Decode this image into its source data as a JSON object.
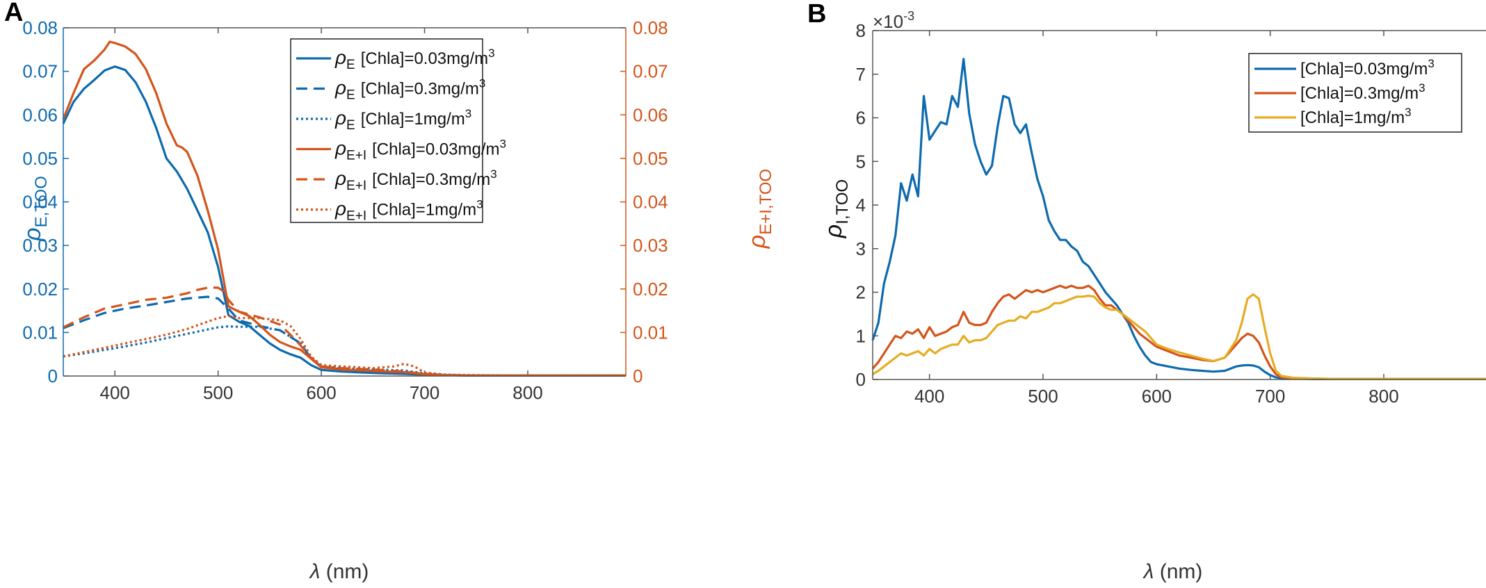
{
  "colors": {
    "blue": "#0d6aae",
    "orange": "#d4541a",
    "yellow": "#e6ac22",
    "axis": "#555555",
    "tickText": "#333333"
  },
  "chart_data": [
    {
      "panel": "A",
      "type": "line",
      "xlabel_symbol": "λ",
      "xlabel_unit": " (nm)",
      "xlim": [
        350,
        895
      ],
      "xticks": [
        "400",
        "500",
        "600",
        "700",
        "800"
      ],
      "xtick_values": [
        400,
        500,
        600,
        700,
        800
      ],
      "ylabel_left": {
        "symbol": "ρ",
        "sub": "E,TOO"
      },
      "ylabel_right": {
        "symbol": "ρ",
        "sub": "E+I,TOO"
      },
      "ylim": [
        0,
        0.08
      ],
      "yticks": [
        "0",
        "0.01",
        "0.02",
        "0.03",
        "0.04",
        "0.05",
        "0.06",
        "0.07",
        "0.08"
      ],
      "ytick_values": [
        0,
        0.01,
        0.02,
        0.03,
        0.04,
        0.05,
        0.06,
        0.07,
        0.08
      ],
      "legend_position": "top-right",
      "series": [
        {
          "id": "pE_003",
          "rho": "ρ",
          "sub": "E",
          "label": "[Chla]=0.03mg/m",
          "sup": "3",
          "color": "blue",
          "style": "solid",
          "x": [
            350,
            360,
            370,
            380,
            390,
            400,
            410,
            420,
            430,
            440,
            450,
            460,
            470,
            480,
            490,
            500,
            510,
            520,
            530,
            540,
            550,
            560,
            570,
            580,
            590,
            600,
            620,
            640,
            660,
            680,
            700,
            720,
            750,
            800,
            850,
            895
          ],
          "y": [
            0.058,
            0.063,
            0.066,
            0.068,
            0.0702,
            0.0711,
            0.0703,
            0.0675,
            0.063,
            0.057,
            0.05,
            0.047,
            0.043,
            0.038,
            0.033,
            0.025,
            0.014,
            0.0125,
            0.0115,
            0.0095,
            0.0075,
            0.006,
            0.005,
            0.0042,
            0.0025,
            0.0014,
            0.001,
            0.0008,
            0.0006,
            0.0005,
            0.0003,
            0.0002,
            0.0001,
            0.0001,
            0.0001,
            0.0001
          ]
        },
        {
          "id": "pE_03",
          "rho": "ρ",
          "sub": "E",
          "label": "[Chla]=0.3mg/m",
          "sup": "3",
          "color": "blue",
          "style": "dashed",
          "x": [
            350,
            370,
            390,
            410,
            430,
            450,
            470,
            490,
            500,
            510,
            520,
            540,
            560,
            580,
            590,
            600,
            620,
            650,
            680,
            700,
            720,
            750,
            800,
            850,
            895
          ],
          "y": [
            0.011,
            0.0128,
            0.0145,
            0.0155,
            0.0162,
            0.017,
            0.0178,
            0.0182,
            0.0178,
            0.0155,
            0.0128,
            0.0115,
            0.0105,
            0.0075,
            0.004,
            0.0022,
            0.0015,
            0.0012,
            0.0008,
            0.0004,
            0.0002,
            0.0001,
            0.0001,
            0.0001,
            0.0001
          ]
        },
        {
          "id": "pE_1",
          "rho": "ρ",
          "sub": "E",
          "label": "[Chla]=1mg/m",
          "sup": "3",
          "color": "blue",
          "style": "dotted",
          "x": [
            350,
            370,
            390,
            410,
            430,
            450,
            470,
            490,
            500,
            510,
            520,
            540,
            560,
            580,
            590,
            600,
            620,
            650,
            680,
            700,
            720,
            750,
            800,
            850,
            895
          ],
          "y": [
            0.0045,
            0.0052,
            0.006,
            0.0068,
            0.0077,
            0.0087,
            0.0097,
            0.0107,
            0.0112,
            0.0114,
            0.0113,
            0.0113,
            0.0105,
            0.0075,
            0.004,
            0.0022,
            0.0018,
            0.0015,
            0.0013,
            0.0006,
            0.0003,
            0.0001,
            0.0001,
            0.0001,
            0.0001
          ]
        },
        {
          "id": "pEI_003",
          "rho": "ρ",
          "sub": "E+I",
          "label": "[Chla]=0.03mg/m",
          "sup": "3",
          "color": "orange",
          "style": "solid",
          "x": [
            350,
            360,
            370,
            380,
            390,
            395,
            400,
            410,
            420,
            430,
            440,
            450,
            460,
            465,
            470,
            480,
            490,
            500,
            510,
            520,
            530,
            540,
            550,
            560,
            570,
            580,
            590,
            600,
            620,
            640,
            660,
            680,
            700,
            720,
            750,
            800,
            850,
            895
          ],
          "y": [
            0.059,
            0.065,
            0.0705,
            0.0725,
            0.075,
            0.0768,
            0.0765,
            0.0757,
            0.074,
            0.0705,
            0.065,
            0.058,
            0.053,
            0.0525,
            0.0515,
            0.046,
            0.038,
            0.029,
            0.016,
            0.0148,
            0.0138,
            0.0118,
            0.0095,
            0.0078,
            0.0068,
            0.006,
            0.004,
            0.002,
            0.0015,
            0.0013,
            0.001,
            0.0009,
            0.0004,
            0.0002,
            0.0001,
            0.0001,
            0.0001,
            0.0001
          ]
        },
        {
          "id": "pEI_03",
          "rho": "ρ",
          "sub": "E+I",
          "label": "[Chla]=0.3mg/m",
          "sup": "3",
          "color": "orange",
          "style": "dashed",
          "x": [
            350,
            370,
            390,
            410,
            430,
            450,
            470,
            480,
            490,
            500,
            505,
            510,
            520,
            540,
            560,
            570,
            580,
            590,
            600,
            620,
            650,
            680,
            700,
            720,
            750,
            800,
            850,
            895
          ],
          "y": [
            0.0112,
            0.0135,
            0.0155,
            0.0165,
            0.0175,
            0.018,
            0.019,
            0.0198,
            0.0203,
            0.0203,
            0.0195,
            0.0175,
            0.0148,
            0.0135,
            0.0118,
            0.0095,
            0.007,
            0.0042,
            0.0022,
            0.0018,
            0.0015,
            0.001,
            0.0005,
            0.0002,
            0.0001,
            0.0001,
            0.0001,
            0.0001
          ]
        },
        {
          "id": "pEI_1",
          "rho": "ρ",
          "sub": "E+I",
          "label": "[Chla]=1mg/m",
          "sup": "3",
          "color": "orange",
          "style": "dotted",
          "x": [
            350,
            370,
            390,
            410,
            430,
            450,
            470,
            490,
            500,
            510,
            520,
            540,
            560,
            570,
            580,
            590,
            600,
            620,
            650,
            670,
            680,
            690,
            700,
            720,
            750,
            800,
            850,
            895
          ],
          "y": [
            0.0045,
            0.0055,
            0.0065,
            0.0075,
            0.0085,
            0.0095,
            0.0108,
            0.0125,
            0.0133,
            0.0138,
            0.0133,
            0.0133,
            0.0128,
            0.0115,
            0.0085,
            0.0045,
            0.0025,
            0.0022,
            0.0018,
            0.0022,
            0.0028,
            0.0022,
            0.0008,
            0.0003,
            0.0002,
            0.0001,
            0.0001,
            0.0001
          ]
        }
      ]
    },
    {
      "panel": "B",
      "type": "line",
      "xlabel_symbol": "λ",
      "xlabel_unit": " (nm)",
      "xlim": [
        350,
        890
      ],
      "xticks": [
        "400",
        "500",
        "600",
        "700",
        "800"
      ],
      "xtick_values": [
        400,
        500,
        600,
        700,
        800
      ],
      "ylabel": {
        "symbol": "ρ",
        "sub": "I,TOO"
      },
      "y_scale_label": {
        "base": "×10",
        "exp": "-3"
      },
      "ylim": [
        0,
        8
      ],
      "yticks": [
        "0",
        "1",
        "2",
        "3",
        "4",
        "5",
        "6",
        "7",
        "8"
      ],
      "ytick_values": [
        0,
        1,
        2,
        3,
        4,
        5,
        6,
        7,
        8
      ],
      "legend_position": "top-right",
      "series": [
        {
          "id": "pI_003",
          "label": "[Chla]=0.03mg/m",
          "sup": "3",
          "color": "blue",
          "style": "solid",
          "x": [
            350,
            355,
            360,
            365,
            370,
            375,
            380,
            385,
            390,
            395,
            400,
            405,
            410,
            415,
            420,
            425,
            430,
            435,
            440,
            445,
            450,
            455,
            460,
            465,
            470,
            475,
            480,
            485,
            490,
            495,
            500,
            505,
            510,
            515,
            520,
            525,
            530,
            535,
            540,
            545,
            550,
            555,
            560,
            565,
            570,
            575,
            580,
            585,
            590,
            595,
            600,
            610,
            620,
            630,
            640,
            650,
            660,
            670,
            675,
            680,
            685,
            690,
            695,
            700,
            705,
            710,
            720,
            740,
            760,
            800,
            850,
            890
          ],
          "y": [
            0.9,
            1.3,
            2.2,
            2.7,
            3.3,
            4.5,
            4.1,
            4.7,
            4.2,
            6.5,
            5.5,
            5.7,
            5.9,
            5.85,
            6.5,
            6.25,
            7.35,
            6.1,
            5.4,
            5.0,
            4.7,
            4.9,
            5.8,
            6.5,
            6.45,
            5.85,
            5.65,
            5.85,
            5.2,
            4.6,
            4.2,
            3.65,
            3.4,
            3.2,
            3.2,
            3.05,
            2.95,
            2.7,
            2.6,
            2.4,
            2.2,
            2.0,
            1.85,
            1.7,
            1.5,
            1.3,
            1.0,
            0.75,
            0.55,
            0.4,
            0.35,
            0.3,
            0.25,
            0.22,
            0.2,
            0.18,
            0.2,
            0.3,
            0.32,
            0.33,
            0.32,
            0.28,
            0.18,
            0.1,
            0.05,
            0.03,
            0.02,
            0.01,
            0.01,
            0.01,
            0.01,
            0.01
          ]
        },
        {
          "id": "pI_03",
          "label": "[Chla]=0.3mg/m",
          "sup": "3",
          "color": "orange",
          "style": "solid",
          "x": [
            350,
            355,
            360,
            365,
            370,
            375,
            380,
            385,
            390,
            395,
            400,
            405,
            410,
            415,
            420,
            425,
            430,
            435,
            440,
            445,
            450,
            455,
            460,
            465,
            470,
            475,
            480,
            485,
            490,
            495,
            500,
            505,
            510,
            515,
            520,
            525,
            530,
            535,
            540,
            545,
            550,
            555,
            560,
            565,
            570,
            575,
            580,
            585,
            590,
            595,
            600,
            610,
            620,
            630,
            640,
            650,
            660,
            670,
            675,
            680,
            685,
            690,
            695,
            700,
            705,
            710,
            720,
            740,
            760,
            800,
            850,
            890
          ],
          "y": [
            0.25,
            0.4,
            0.6,
            0.8,
            1.0,
            0.95,
            1.1,
            1.05,
            1.15,
            0.95,
            1.2,
            1.0,
            1.05,
            1.1,
            1.2,
            1.25,
            1.55,
            1.3,
            1.25,
            1.25,
            1.3,
            1.55,
            1.75,
            1.9,
            1.95,
            1.85,
            1.95,
            2.05,
            2.0,
            2.05,
            2.0,
            2.05,
            2.1,
            2.15,
            2.1,
            2.15,
            2.1,
            2.1,
            2.15,
            2.05,
            1.85,
            1.7,
            1.7,
            1.6,
            1.5,
            1.35,
            1.2,
            1.05,
            0.95,
            0.85,
            0.75,
            0.65,
            0.55,
            0.5,
            0.45,
            0.42,
            0.5,
            0.8,
            0.95,
            1.05,
            1.0,
            0.85,
            0.55,
            0.3,
            0.12,
            0.05,
            0.03,
            0.02,
            0.01,
            0.01,
            0.01,
            0.01
          ]
        },
        {
          "id": "pI_1",
          "label": "[Chla]=1mg/m",
          "sup": "3",
          "color": "yellow",
          "style": "solid",
          "x": [
            350,
            355,
            360,
            365,
            370,
            375,
            380,
            385,
            390,
            395,
            400,
            405,
            410,
            415,
            420,
            425,
            430,
            435,
            440,
            445,
            450,
            455,
            460,
            465,
            470,
            475,
            480,
            485,
            490,
            495,
            500,
            505,
            510,
            515,
            520,
            525,
            530,
            535,
            540,
            545,
            550,
            555,
            560,
            565,
            570,
            575,
            580,
            585,
            590,
            595,
            600,
            610,
            620,
            630,
            640,
            650,
            660,
            670,
            675,
            680,
            685,
            690,
            695,
            700,
            705,
            710,
            720,
            740,
            760,
            800,
            850,
            890
          ],
          "y": [
            0.12,
            0.2,
            0.3,
            0.4,
            0.5,
            0.6,
            0.55,
            0.6,
            0.65,
            0.55,
            0.7,
            0.6,
            0.7,
            0.75,
            0.8,
            0.8,
            1.0,
            0.85,
            0.9,
            0.9,
            0.95,
            1.1,
            1.25,
            1.3,
            1.35,
            1.35,
            1.45,
            1.4,
            1.55,
            1.55,
            1.6,
            1.65,
            1.75,
            1.75,
            1.8,
            1.85,
            1.9,
            1.9,
            1.92,
            1.9,
            1.75,
            1.65,
            1.6,
            1.6,
            1.5,
            1.4,
            1.3,
            1.2,
            1.1,
            0.95,
            0.8,
            0.7,
            0.62,
            0.55,
            0.48,
            0.42,
            0.5,
            0.9,
            1.3,
            1.85,
            1.95,
            1.85,
            1.2,
            0.6,
            0.2,
            0.08,
            0.04,
            0.02,
            0.01,
            0.01,
            0.01,
            0.01
          ]
        }
      ]
    }
  ]
}
